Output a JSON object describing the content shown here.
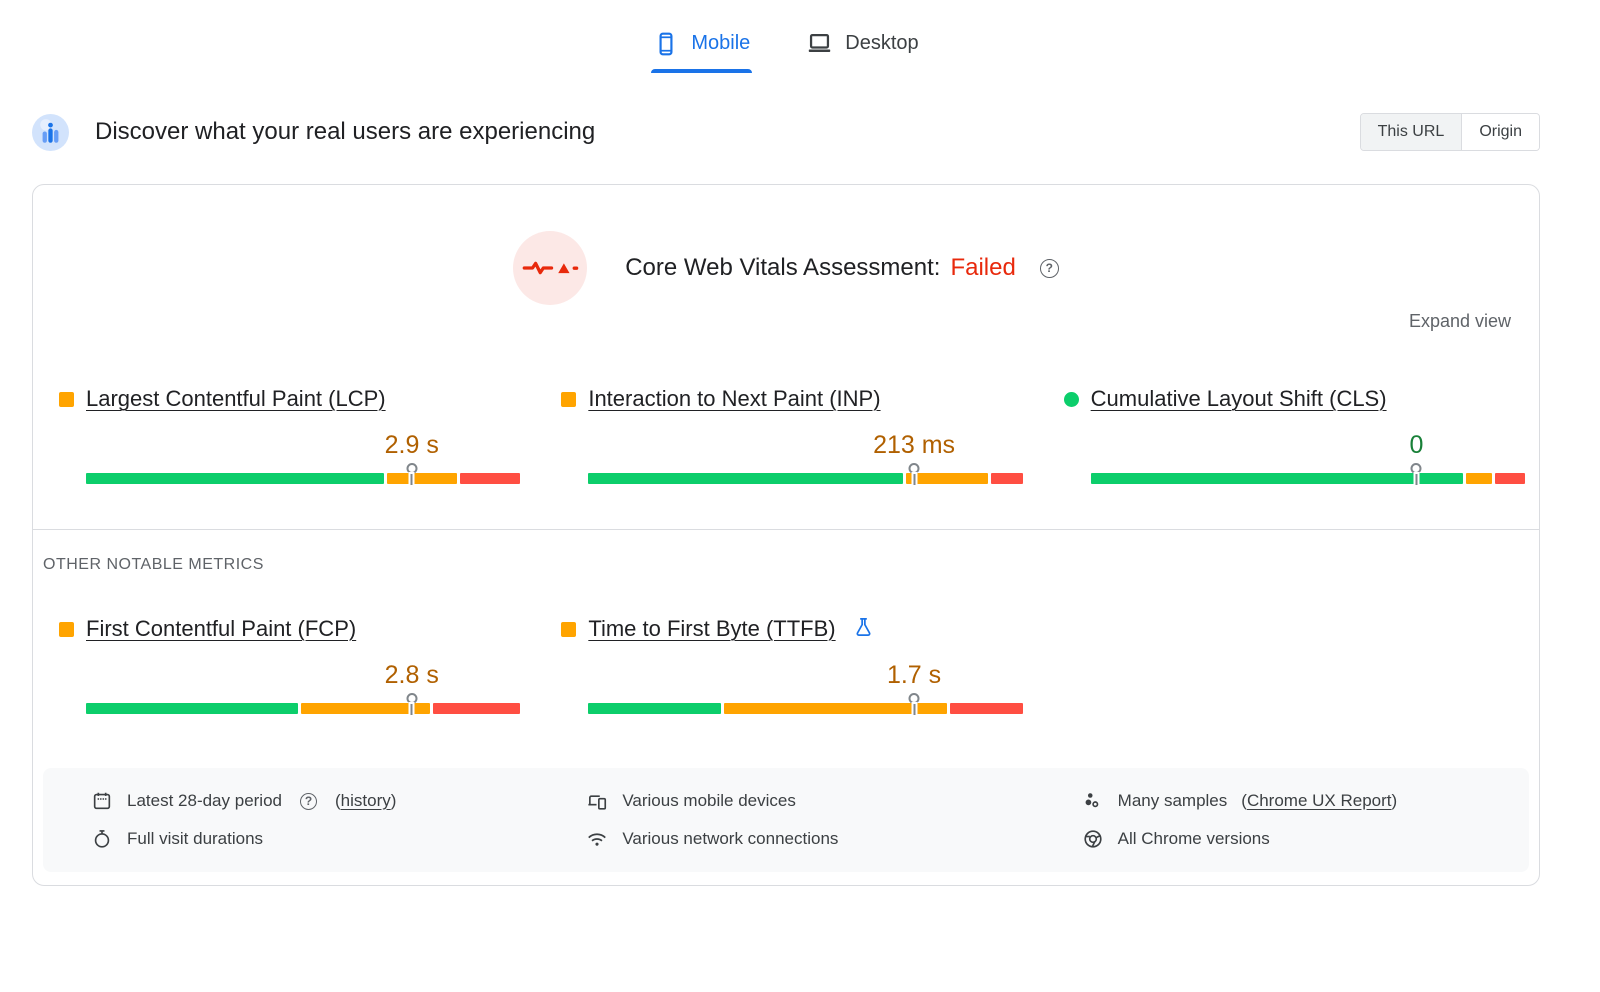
{
  "device_tabs": {
    "mobile_label": "Mobile",
    "desktop_label": "Desktop",
    "active_tab": "Mobile"
  },
  "field_section": {
    "title": "Discover what your real users are experiencing",
    "scope_toggle": {
      "options": [
        "This URL",
        "Origin"
      ],
      "selected": "This URL"
    }
  },
  "assessment": {
    "label": "Core Web Vitals Assessment:",
    "status": "Failed"
  },
  "expand_view_label": "Expand view",
  "other_metrics_heading": "OTHER NOTABLE METRICS",
  "colors": {
    "good": "#0cce6b",
    "needs_improvement": "#ffa400",
    "poor": "#ff4e42",
    "failed_status": "#e8290c",
    "p75_value_amber": "#b06000",
    "p75_value_green": "#188038",
    "accent_blue": "#1a73e8"
  },
  "metrics": {
    "core": [
      {
        "id": "lcp",
        "title": "Largest Contentful Paint (LCP)",
        "value": "2.9 s",
        "value_color": "#b06000",
        "indicator": {
          "shape": "square",
          "color": "#ffa400"
        },
        "p75_marker_position_pct": 75,
        "distribution_pct": {
          "good": 69.5,
          "needs_improvement": 16.5,
          "poor": 14
        },
        "experimental": false
      },
      {
        "id": "inp",
        "title": "Interaction to Next Paint (INP)",
        "value": "213 ms",
        "value_color": "#b06000",
        "indicator": {
          "shape": "square",
          "color": "#ffa400"
        },
        "p75_marker_position_pct": 75,
        "distribution_pct": {
          "good": 73.5,
          "needs_improvement": 19,
          "poor": 7.5
        },
        "experimental": false
      },
      {
        "id": "cls",
        "title": "Cumulative Layout Shift (CLS)",
        "value": "0",
        "value_color": "#188038",
        "indicator": {
          "shape": "circle",
          "color": "#0cce6b"
        },
        "p75_marker_position_pct": 75,
        "distribution_pct": {
          "good": 87,
          "needs_improvement": 6,
          "poor": 7
        },
        "experimental": false
      }
    ],
    "other": [
      {
        "id": "fcp",
        "title": "First Contentful Paint (FCP)",
        "value": "2.8 s",
        "value_color": "#b06000",
        "indicator": {
          "shape": "square",
          "color": "#ffa400"
        },
        "p75_marker_position_pct": 75,
        "distribution_pct": {
          "good": 49.5,
          "needs_improvement": 30,
          "poor": 20.5
        },
        "experimental": false
      },
      {
        "id": "ttfb",
        "title": "Time to First Byte (TTFB)",
        "value": "1.7 s",
        "value_color": "#b06000",
        "indicator": {
          "shape": "square",
          "color": "#ffa400"
        },
        "p75_marker_position_pct": 75,
        "distribution_pct": {
          "good": 31,
          "needs_improvement": 52,
          "poor": 17
        },
        "experimental": true
      }
    ]
  },
  "footer": {
    "period_text": "Latest 28-day period",
    "history_prefix": "(",
    "history_link": "history",
    "history_suffix": ")",
    "durations_text": "Full visit durations",
    "devices_text": "Various mobile devices",
    "network_text": "Various network connections",
    "samples_text": "Many samples",
    "samples_prefix": "(",
    "crux_link": "Chrome UX Report",
    "samples_suffix": ")",
    "chrome_text": "All Chrome versions"
  }
}
